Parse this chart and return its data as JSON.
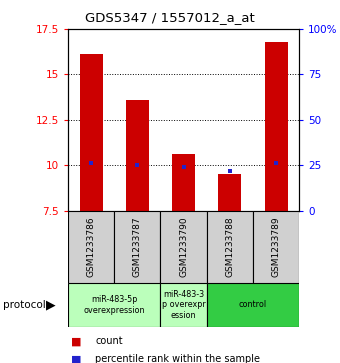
{
  "title": "GDS5347 / 1557012_a_at",
  "samples": [
    "GSM1233786",
    "GSM1233787",
    "GSM1233790",
    "GSM1233788",
    "GSM1233789"
  ],
  "count_values": [
    16.1,
    13.6,
    10.6,
    9.5,
    16.8
  ],
  "percentile_values": [
    26,
    25,
    24,
    22,
    26
  ],
  "ylim_left": [
    7.5,
    17.5
  ],
  "ylim_right": [
    0,
    100
  ],
  "yticks_left": [
    7.5,
    10.0,
    12.5,
    15.0,
    17.5
  ],
  "yticks_right": [
    0,
    25,
    50,
    75,
    100
  ],
  "ytick_labels_left": [
    "7.5",
    "10",
    "12.5",
    "15",
    "17.5"
  ],
  "ytick_labels_right": [
    "0",
    "25",
    "50",
    "75",
    "100%"
  ],
  "grid_values": [
    10.0,
    12.5,
    15.0
  ],
  "bar_color": "#cc0000",
  "blue_color": "#2222cc",
  "plot_bg": "#ffffff",
  "group_info": [
    {
      "start": 0,
      "end": 1,
      "label": "miR-483-5p\noverexpression",
      "color": "#bbffbb"
    },
    {
      "start": 2,
      "end": 2,
      "label": "miR-483-3\np overexpr\nession",
      "color": "#bbffbb"
    },
    {
      "start": 3,
      "end": 4,
      "label": "control",
      "color": "#33cc44"
    }
  ],
  "legend_count_label": "count",
  "legend_pct_label": "percentile rank within the sample",
  "bar_width": 0.5
}
